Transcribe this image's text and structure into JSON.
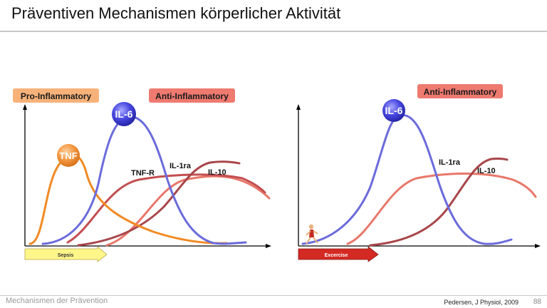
{
  "slide": {
    "title": "Präventiven Mechanismen körperlicher Aktivität",
    "footer_left": "Mechanismen der Prävention",
    "citation": "Pedersen, J Physiol, 2009",
    "page_number": "88"
  },
  "left_panel": {
    "pro_label": "Pro-Inflammatory",
    "anti_label": "Anti-Inflammatory",
    "il6": "IL-6",
    "tnf": "TNF",
    "tnfr": "TNF-R",
    "il1ra": "IL-1ra",
    "il10": "IL-10",
    "arrow_label": "Sepsis"
  },
  "right_panel": {
    "anti_label": "Anti-Inflammatory",
    "il6": "IL-6",
    "il1ra": "IL-1ra",
    "il10": "IL-10",
    "arrow_label": "Excercise"
  },
  "colors": {
    "orange": "#f08a24",
    "blue": "#6b6bdb",
    "red_dark": "#a8464a",
    "red_mid": "#c24e50",
    "salmon": "#e8776a",
    "pro_box": "#f7b27a",
    "anti_box": "#ee7a70",
    "sepsis_arrow": "#fff68a",
    "exercise_arrow": "#d42a24"
  }
}
